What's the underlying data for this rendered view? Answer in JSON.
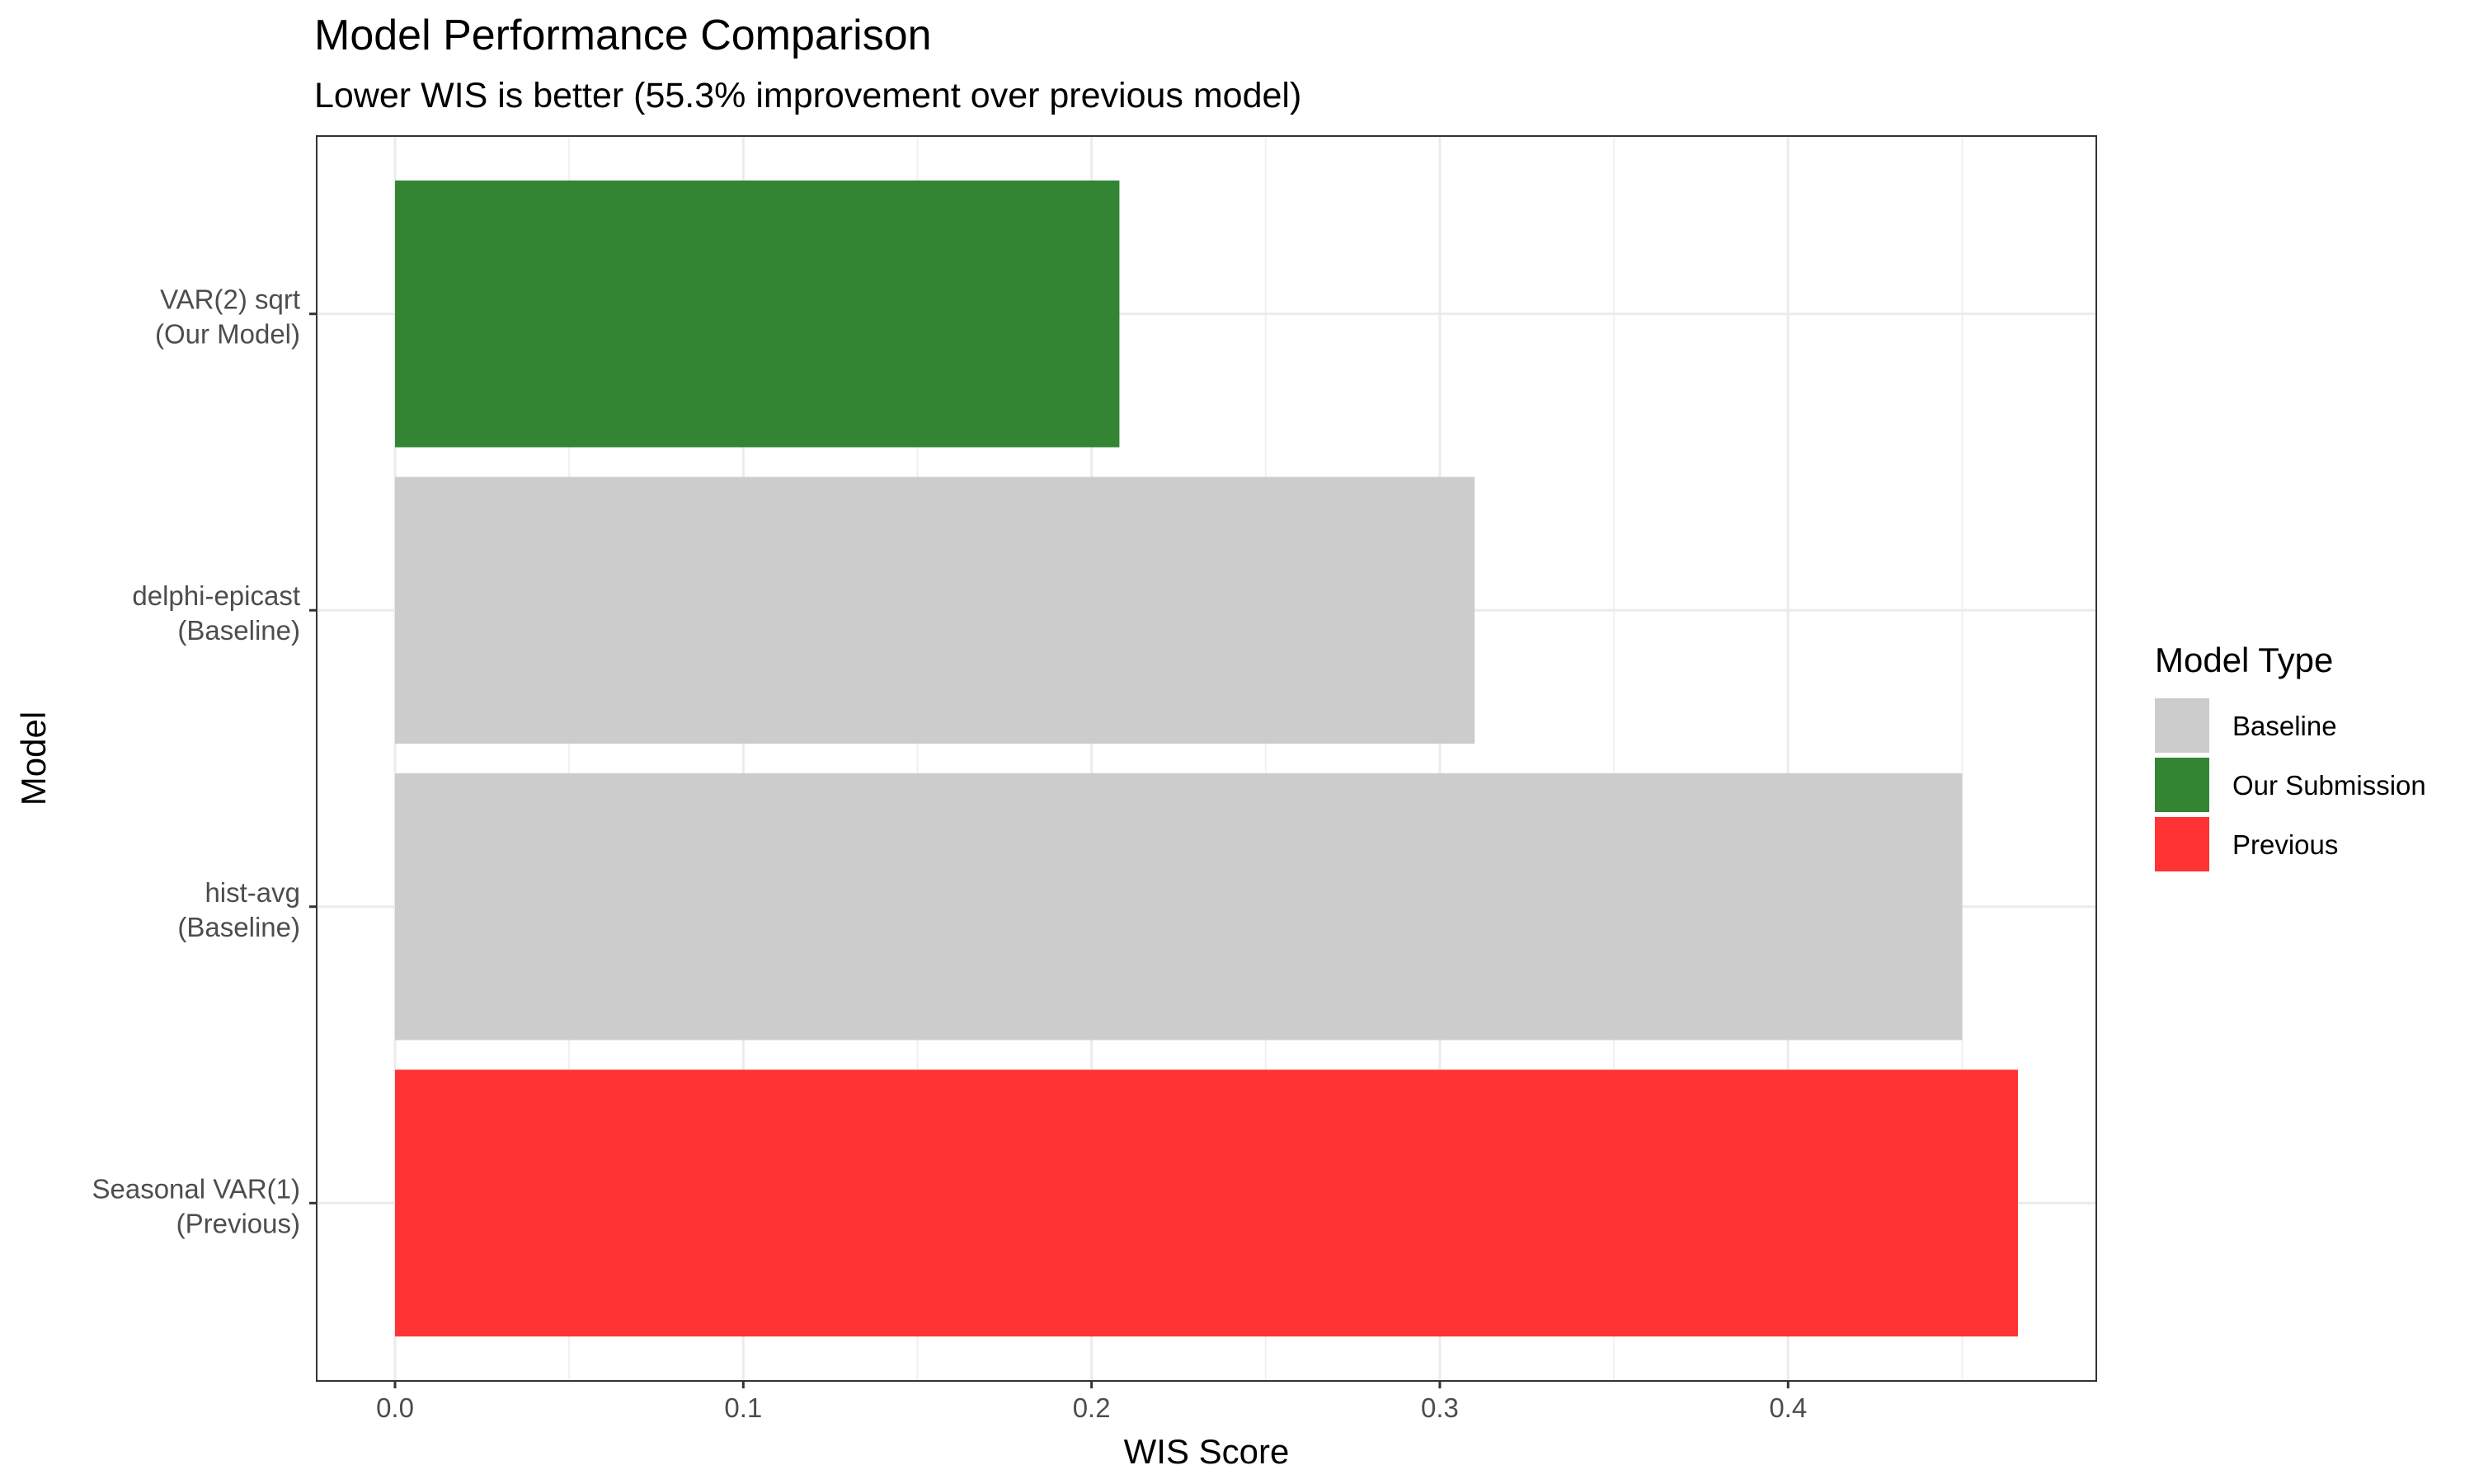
{
  "chart_data": {
    "type": "bar",
    "orientation": "horizontal",
    "title": "Model Performance Comparison",
    "subtitle": "Lower WIS is better (55.3% improvement over previous model)",
    "xlabel": "WIS Score",
    "ylabel": "Model",
    "xlim": [
      -0.0225,
      0.4885
    ],
    "x_ticks": [
      0.0,
      0.1,
      0.2,
      0.3,
      0.4
    ],
    "x_tick_labels": [
      "0.0",
      "0.1",
      "0.2",
      "0.3",
      "0.4"
    ],
    "grid": true,
    "legend": {
      "title": "Model Type",
      "position": "right",
      "entries": [
        {
          "label": "Baseline",
          "color": "#cccccc"
        },
        {
          "label": "Our Submission",
          "color": "#338533"
        },
        {
          "label": "Previous",
          "color": "#ff3333"
        }
      ]
    },
    "categories": [
      {
        "line1": "VAR(2) sqrt",
        "line2": "(Our Model)",
        "value": 0.208,
        "type": "Our Submission"
      },
      {
        "line1": "delphi-epicast",
        "line2": "(Baseline)",
        "value": 0.31,
        "type": "Baseline"
      },
      {
        "line1": "hist-avg",
        "line2": "(Baseline)",
        "value": 0.45,
        "type": "Baseline"
      },
      {
        "line1": "Seasonal VAR(1)",
        "line2": "(Previous)",
        "value": 0.466,
        "type": "Previous"
      }
    ]
  }
}
